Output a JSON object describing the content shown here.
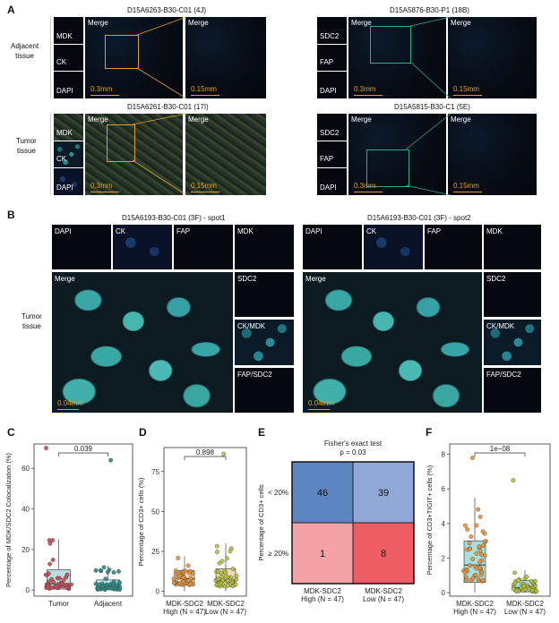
{
  "panels": {
    "A": "A",
    "B": "B",
    "C": "C",
    "D": "D",
    "E": "E",
    "F": "F"
  },
  "panelA": {
    "row_labels": [
      "Adjacent\ntissue",
      "Tumor\ntissue"
    ],
    "row_label_adjacent_1": "Adjacent",
    "row_label_adjacent_2": "tissue",
    "row_label_tumor_1": "Tumor",
    "row_label_tumor_2": "tissue",
    "titles": [
      "D15A6263-B30-C01 (4J)",
      "D15A5876-B30-P1 (18B)",
      "D15A6261-B30-C01 (17I)",
      "D15A5815-B30-C1 (5E)"
    ],
    "left_markers": [
      "MDK",
      "CK",
      "DAPI"
    ],
    "right_markers": [
      "SDC2",
      "FAP",
      "DAPI"
    ],
    "merge": "Merge",
    "scale_wide": "0.3mm",
    "scale_zoom": "0.15mm"
  },
  "panelB": {
    "titles": [
      "D15A6193-B30-C01 (3F) - spot1",
      "D15A6193-B30-C01 (3F) - spot2"
    ],
    "row_label_1": "Tumor",
    "row_label_2": "tissue",
    "top_channels": [
      "DAPI",
      "CK",
      "FAP",
      "MDK"
    ],
    "side_channels": [
      "SDC2",
      "CK/MDK",
      "FAP/SDC2"
    ],
    "merge": "Merge",
    "scale": "0.04mm"
  },
  "panelC": {
    "ylabel": "Percentage of MDK/SDC2 Colocalization (%)",
    "pvalue": "0.039",
    "chart_data": {
      "type": "box",
      "categories": [
        "Tumor",
        "Adjacent"
      ],
      "ylim": [
        -3,
        72
      ],
      "yticks": [
        0,
        20,
        40,
        60
      ],
      "series": [
        {
          "name": "Tumor",
          "median": 3,
          "q1": 0.5,
          "q3": 10,
          "whisker_low": 0,
          "whisker_high": 25,
          "max_outlier": 70,
          "color": "#c94a52"
        },
        {
          "name": "Adjacent",
          "median": 1.5,
          "q1": 0.2,
          "q3": 5,
          "whisker_low": 0,
          "whisker_high": 12,
          "max_outlier": 64,
          "color": "#2a8a8a"
        }
      ]
    }
  },
  "panelD": {
    "ylabel": "Percentage of CD3+ cells (%)",
    "pvalue": "0.898",
    "xlabels": [
      [
        "MDK-SDC2",
        "High (N = 47)"
      ],
      [
        "MDK-SDC2",
        "Low (N = 47)"
      ]
    ],
    "chart_data": {
      "type": "box",
      "categories": [
        "MDK-SDC2 High (N = 47)",
        "MDK-SDC2 Low (N = 47)"
      ],
      "ylim": [
        -3,
        90
      ],
      "yticks": [
        0,
        25,
        50,
        75
      ],
      "series": [
        {
          "name": "High",
          "median": 8,
          "q1": 4,
          "q3": 13,
          "whisker_low": 0,
          "whisker_high": 22,
          "color": "#e8923a"
        },
        {
          "name": "Low",
          "median": 7,
          "q1": 3,
          "q3": 14,
          "whisker_low": 0,
          "whisker_high": 30,
          "max_outlier": 86,
          "color": "#b5c23a"
        }
      ]
    }
  },
  "panelE": {
    "title1": "Fisher's exact test",
    "title2": "p = 0.03",
    "ylabel": "Percentage of CD3+ cells",
    "row_labels": [
      "< 20%",
      "≥ 20%"
    ],
    "col_labels": [
      [
        "MDK-SDC2",
        "High (N = 47)"
      ],
      [
        "MDK-SDC2",
        "Low (N = 47)"
      ]
    ],
    "chart_data": {
      "type": "heatmap",
      "rows": [
        "< 20%",
        "≥ 20%"
      ],
      "columns": [
        "MDK-SDC2 High (N = 47)",
        "MDK-SDC2 Low (N = 47)"
      ],
      "values": [
        [
          46,
          39
        ],
        [
          1,
          8
        ]
      ],
      "cells": [
        "46",
        "39",
        "1",
        "8"
      ],
      "colors": [
        "#5b86c2",
        "#8fa8d6",
        "#f4a2a5",
        "#ee5d64"
      ]
    }
  },
  "panelF": {
    "ylabel": "Percentage of CD3+TIGIT+ cells (%)",
    "pvalue": "1e−08",
    "xlabels": [
      [
        "MDK-SDC2",
        "High (N = 47)"
      ],
      [
        "MDK-SDC2",
        "Low (N = 47)"
      ]
    ],
    "chart_data": {
      "type": "box",
      "categories": [
        "MDK-SDC2 High (N = 47)",
        "MDK-SDC2 Low (N = 47)"
      ],
      "ylim": [
        -0.2,
        8.6
      ],
      "yticks": [
        0,
        2,
        4,
        6,
        8
      ],
      "series": [
        {
          "name": "High",
          "median": 1.6,
          "q1": 0.6,
          "q3": 3.0,
          "whisker_low": 0,
          "whisker_high": 5.5,
          "max_outlier": 7.8,
          "color": "#e8923a"
        },
        {
          "name": "Low",
          "median": 0.3,
          "q1": 0.05,
          "q3": 0.7,
          "whisker_low": 0,
          "whisker_high": 1.3,
          "max_outlier": 6.5,
          "color": "#b5c23a"
        }
      ]
    }
  }
}
